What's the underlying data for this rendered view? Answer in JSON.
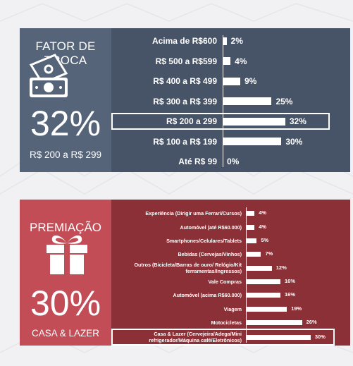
{
  "panel1": {
    "title": "FATOR DE TROCA",
    "highlight_value": "32%",
    "highlight_label": "R$ 200 a R$ 299",
    "icon": "money-icon"
  },
  "panel2": {
    "title": "PREMIAÇÃO",
    "highlight_value": "30%",
    "highlight_label": "CASA & LAZER",
    "icon": "gift-icon"
  },
  "chart_data": [
    {
      "type": "bar",
      "orientation": "horizontal",
      "categories": [
        "Acima de R$600",
        "R$ 500 a R$599",
        "R$ 400 a R$ 499",
        "R$ 300 a R$ 399",
        "R$ 200 a 299",
        "R$ 100 a R$ 199",
        "Até R$ 99"
      ],
      "values": [
        2,
        4,
        9,
        25,
        32,
        30,
        0
      ],
      "value_labels": [
        "2%",
        "4%",
        "9%",
        "25%",
        "32%",
        "30%",
        "0%"
      ],
      "highlighted_index": 4,
      "xlim": [
        0,
        36
      ],
      "grid": false
    },
    {
      "type": "bar",
      "orientation": "horizontal",
      "categories": [
        "Experiência (Dirigir uma Ferrari/Cursos)",
        "Automóvel (até R$60.000)",
        "Smartphones/Celulares/Tablets",
        "Bebidas (Cervejas/Vinhos)",
        "Outros (Bicicleta/Barras de ouro/ Relógio/Kit ferramentas/Ingressos)",
        "Vale Compras",
        "Automóvel (acima R$60.000)",
        "Viagem",
        "Motocicletas",
        "Casa & Lazer (Cervejeira/Adega/Mini refrigerador/Máquina café/Eletrônicos)"
      ],
      "values": [
        4,
        4,
        5,
        7,
        12,
        16,
        16,
        19,
        26,
        30
      ],
      "value_labels": [
        "4%",
        "4%",
        "5%",
        "7%",
        "12%",
        "16%",
        "16%",
        "19%",
        "26%",
        "30%"
      ],
      "highlighted_index": 9,
      "xlim": [
        0,
        32
      ],
      "grid": false
    }
  ]
}
